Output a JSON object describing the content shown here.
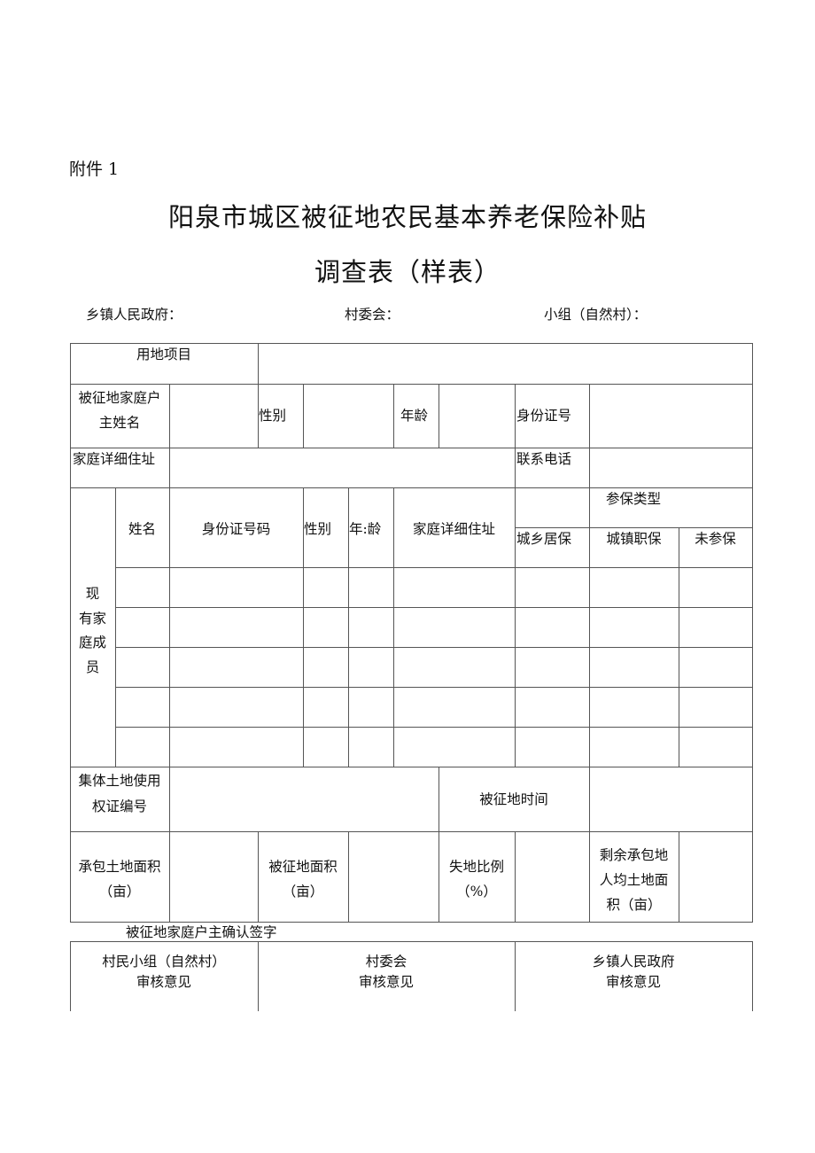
{
  "attachment_label": "附件 1",
  "title_line1": "阳泉市城区被征地农民基本养老保险补贴",
  "title_line2": "调查表（样表）",
  "header_fields": {
    "township": "乡镇人民政府：",
    "village_committee": "村委会：",
    "group": "小组（自然村）："
  },
  "table": {
    "land_project": "用地项目",
    "householder_name": [
      "被征地家庭户",
      "主姓名"
    ],
    "gender": "性别",
    "age": "年龄",
    "id_number": "身份证号",
    "home_address": "家庭详细住址",
    "phone": "联系电话",
    "members_label": [
      "现",
      "有家",
      "庭成",
      "员"
    ],
    "member_columns": {
      "name": "姓名",
      "id_code": "身份证号码",
      "gender": "性别",
      "age": "年:龄",
      "address": "家庭详细住址",
      "insurance_type": "参保类型",
      "insurance_options": [
        "城乡居保",
        "城镇职保",
        "未参保"
      ]
    },
    "collective_land_cert": [
      "集体土地使用",
      "权证编号"
    ],
    "expropriation_time": "被征地时间",
    "contracted_area": [
      "承包土地面积",
      "（亩）"
    ],
    "expropriated_area": [
      "被征地面积",
      "（亩）"
    ],
    "loss_ratio": [
      "失地比例",
      "（%）"
    ],
    "remaining_per_capita": [
      "剩余承包地",
      "人均土地面",
      "积（亩）"
    ]
  },
  "signature_label": "被征地家庭户主确认签字",
  "review": [
    [
      "村民小组（自然村）",
      "审核意见"
    ],
    [
      "村委会",
      "审核意见"
    ],
    [
      "乡镇人民政府",
      "审核意见"
    ]
  ]
}
